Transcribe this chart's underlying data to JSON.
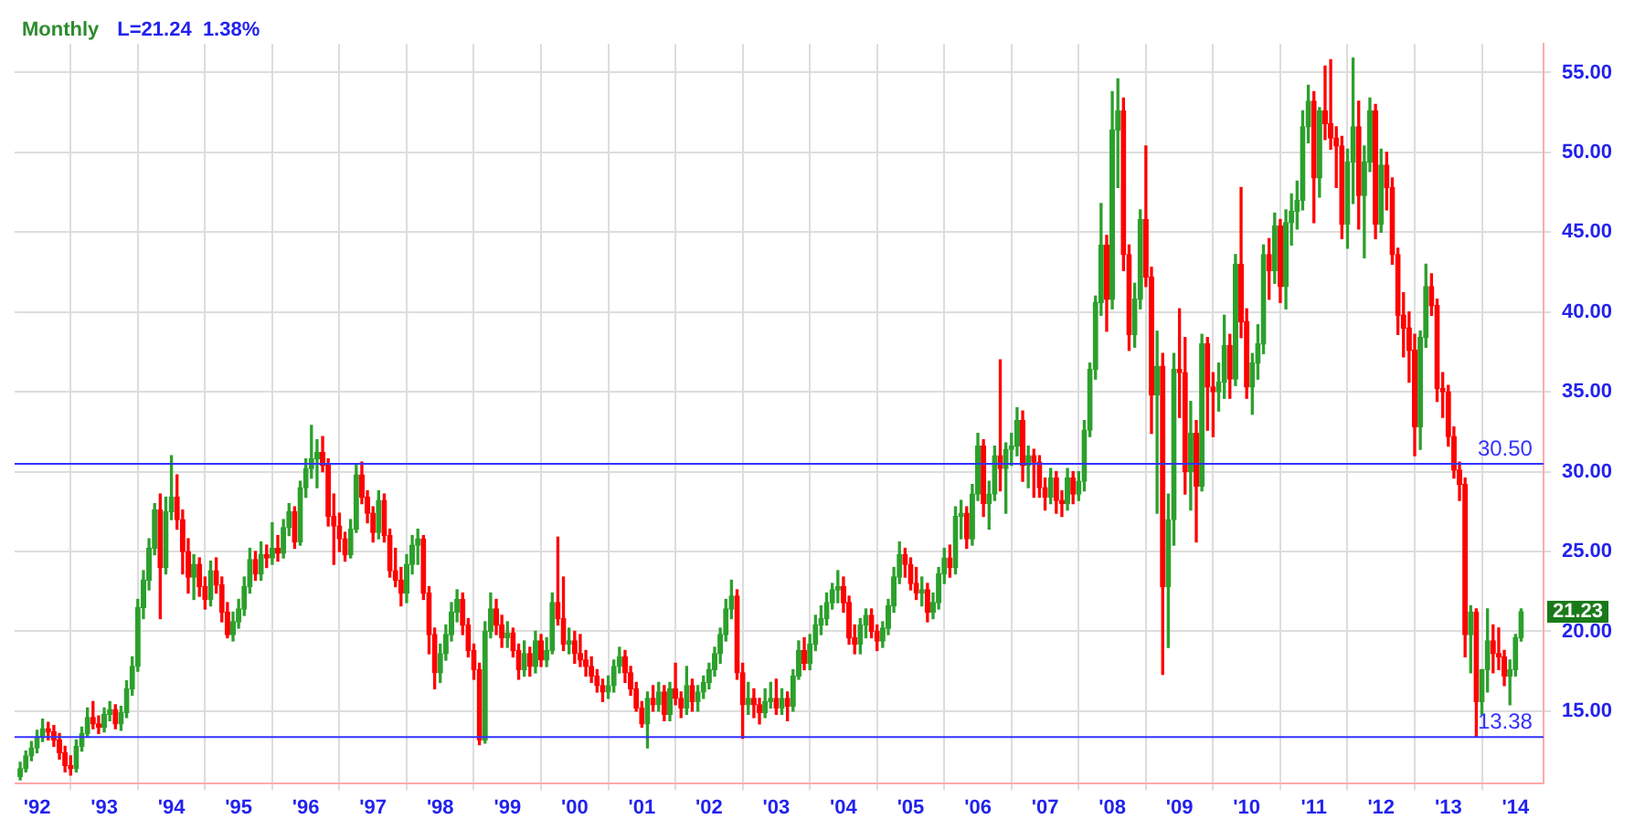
{
  "chart_data": {
    "type": "candlestick",
    "title": "Monthly",
    "subtitle": "L=21.24  1.38%",
    "x": [
      "1991-10",
      "1991-11",
      "1991-12",
      "1992-01",
      "1992-02",
      "1992-03",
      "1992-04",
      "1992-05",
      "1992-06",
      "1992-07",
      "1992-08",
      "1992-09",
      "1992-10",
      "1992-11",
      "1992-12",
      "1993-01",
      "1993-02",
      "1993-03",
      "1993-04",
      "1993-05",
      "1993-06",
      "1993-07",
      "1993-08",
      "1993-09",
      "1993-10",
      "1993-11",
      "1993-12",
      "1994-01",
      "1994-02",
      "1994-03",
      "1994-04",
      "1994-05",
      "1994-06",
      "1994-07",
      "1994-08",
      "1994-09",
      "1994-10",
      "1994-11",
      "1994-12",
      "1995-01",
      "1995-02",
      "1995-03",
      "1995-04",
      "1995-05",
      "1995-06",
      "1995-07",
      "1995-08",
      "1995-09",
      "1995-10",
      "1995-11",
      "1995-12",
      "1996-01",
      "1996-02",
      "1996-03",
      "1996-04",
      "1996-05",
      "1996-06",
      "1996-07",
      "1996-08",
      "1996-09",
      "1996-10",
      "1996-11",
      "1996-12",
      "1997-01",
      "1997-02",
      "1997-03",
      "1997-04",
      "1997-05",
      "1997-06",
      "1997-07",
      "1997-08",
      "1997-09",
      "1997-10",
      "1997-11",
      "1997-12",
      "1998-01",
      "1998-02",
      "1998-03",
      "1998-04",
      "1998-05",
      "1998-06",
      "1998-07",
      "1998-08",
      "1998-09",
      "1998-10",
      "1998-11",
      "1998-12",
      "1999-01",
      "1999-02",
      "1999-03",
      "1999-04",
      "1999-05",
      "1999-06",
      "1999-07",
      "1999-08",
      "1999-09",
      "1999-10",
      "1999-11",
      "1999-12",
      "2000-01",
      "2000-02",
      "2000-03",
      "2000-04",
      "2000-05",
      "2000-06",
      "2000-07",
      "2000-08",
      "2000-09",
      "2000-10",
      "2000-11",
      "2000-12",
      "2001-01",
      "2001-02",
      "2001-03",
      "2001-04",
      "2001-05",
      "2001-06",
      "2001-07",
      "2001-08",
      "2001-09",
      "2001-10",
      "2001-11",
      "2001-12",
      "2002-01",
      "2002-02",
      "2002-03",
      "2002-04",
      "2002-05",
      "2002-06",
      "2002-07",
      "2002-08",
      "2002-09",
      "2002-10",
      "2002-11",
      "2002-12",
      "2003-01",
      "2003-02",
      "2003-03",
      "2003-04",
      "2003-05",
      "2003-06",
      "2003-07",
      "2003-08",
      "2003-09",
      "2003-10",
      "2003-11",
      "2003-12",
      "2004-01",
      "2004-02",
      "2004-03",
      "2004-04",
      "2004-05",
      "2004-06",
      "2004-07",
      "2004-08",
      "2004-09",
      "2004-10",
      "2004-11",
      "2004-12",
      "2005-01",
      "2005-02",
      "2005-03",
      "2005-04",
      "2005-05",
      "2005-06",
      "2005-07",
      "2005-08",
      "2005-09",
      "2005-10",
      "2005-11",
      "2005-12",
      "2006-01",
      "2006-02",
      "2006-03",
      "2006-04",
      "2006-05",
      "2006-06",
      "2006-07",
      "2006-08",
      "2006-09",
      "2006-10",
      "2006-11",
      "2006-12",
      "2007-01",
      "2007-02",
      "2007-03",
      "2007-04",
      "2007-05",
      "2007-06",
      "2007-07",
      "2007-08",
      "2007-09",
      "2007-10",
      "2007-11",
      "2007-12",
      "2008-01",
      "2008-02",
      "2008-03",
      "2008-04",
      "2008-05",
      "2008-06",
      "2008-07",
      "2008-08",
      "2008-09",
      "2008-10",
      "2008-11",
      "2008-12",
      "2009-01",
      "2009-02",
      "2009-03",
      "2009-04",
      "2009-05",
      "2009-06",
      "2009-07",
      "2009-08",
      "2009-09",
      "2009-10",
      "2009-11",
      "2009-12",
      "2010-01",
      "2010-02",
      "2010-03",
      "2010-04",
      "2010-05",
      "2010-06",
      "2010-07",
      "2010-08",
      "2010-09",
      "2010-10",
      "2010-11",
      "2010-12",
      "2011-01",
      "2011-02",
      "2011-03",
      "2011-04",
      "2011-05",
      "2011-06",
      "2011-07",
      "2011-08",
      "2011-09",
      "2011-10",
      "2011-11",
      "2011-12",
      "2012-01",
      "2012-02",
      "2012-03",
      "2012-04",
      "2012-05",
      "2012-06",
      "2012-07",
      "2012-08",
      "2012-09",
      "2012-10",
      "2012-11",
      "2012-12",
      "2013-01",
      "2013-02",
      "2013-03",
      "2013-04",
      "2013-05",
      "2013-06",
      "2013-07",
      "2013-08",
      "2013-09",
      "2013-10",
      "2013-11",
      "2013-12",
      "2014-01",
      "2014-02"
    ],
    "ohlc": [
      [
        10.9,
        11.8,
        10.7,
        11.4
      ],
      [
        11.4,
        12.5,
        11.2,
        12.2
      ],
      [
        12.2,
        13.1,
        11.9,
        12.7
      ],
      [
        12.7,
        13.8,
        12.4,
        13.4
      ],
      [
        13.4,
        14.5,
        13.1,
        13.9
      ],
      [
        13.9,
        14.3,
        13.2,
        13.7
      ],
      [
        13.7,
        14.1,
        12.8,
        13.2
      ],
      [
        13.2,
        13.6,
        12.0,
        12.4
      ],
      [
        12.4,
        12.8,
        11.2,
        11.6
      ],
      [
        11.6,
        12.2,
        11.0,
        11.4
      ],
      [
        11.4,
        13.2,
        11.2,
        12.8
      ],
      [
        12.8,
        14.0,
        12.5,
        13.6
      ],
      [
        13.6,
        15.2,
        13.4,
        14.6
      ],
      [
        14.6,
        15.6,
        13.9,
        14.2
      ],
      [
        14.2,
        14.7,
        13.6,
        14.0
      ],
      [
        14.0,
        15.2,
        13.7,
        14.8
      ],
      [
        14.8,
        15.6,
        14.4,
        15.1
      ],
      [
        15.1,
        15.4,
        13.9,
        14.2
      ],
      [
        14.2,
        15.3,
        13.8,
        14.9
      ],
      [
        14.9,
        16.9,
        14.6,
        16.4
      ],
      [
        16.4,
        18.4,
        16.0,
        17.8
      ],
      [
        17.8,
        22.0,
        17.5,
        21.5
      ],
      [
        21.5,
        23.8,
        20.8,
        23.2
      ],
      [
        23.2,
        25.8,
        22.6,
        25.2
      ],
      [
        25.2,
        28.0,
        24.8,
        27.6
      ],
      [
        27.6,
        28.6,
        20.8,
        24.0
      ],
      [
        24.0,
        28.4,
        23.6,
        27.5
      ],
      [
        27.5,
        31.0,
        27.0,
        28.4
      ],
      [
        28.4,
        29.8,
        26.4,
        27.0
      ],
      [
        27.0,
        27.6,
        23.6,
        25.0
      ],
      [
        25.0,
        25.8,
        22.4,
        23.4
      ],
      [
        23.4,
        24.8,
        22.0,
        24.2
      ],
      [
        24.2,
        24.6,
        22.2,
        22.8
      ],
      [
        22.8,
        23.4,
        21.4,
        22.0
      ],
      [
        22.0,
        24.4,
        21.6,
        23.8
      ],
      [
        23.8,
        24.6,
        22.4,
        22.9
      ],
      [
        22.9,
        23.4,
        20.6,
        21.2
      ],
      [
        21.2,
        21.8,
        19.6,
        19.8
      ],
      [
        19.8,
        21.2,
        19.4,
        20.6
      ],
      [
        20.6,
        22.0,
        20.2,
        21.4
      ],
      [
        21.4,
        23.4,
        21.0,
        22.8
      ],
      [
        22.8,
        25.2,
        22.4,
        24.5
      ],
      [
        24.5,
        25.0,
        23.2,
        23.6
      ],
      [
        23.6,
        25.6,
        23.2,
        24.8
      ],
      [
        24.8,
        25.4,
        24.0,
        24.6
      ],
      [
        24.6,
        26.8,
        24.2,
        25.2
      ],
      [
        25.2,
        26.0,
        24.4,
        24.9
      ],
      [
        24.9,
        27.0,
        24.6,
        26.5
      ],
      [
        26.5,
        28.0,
        26.0,
        27.5
      ],
      [
        27.5,
        27.8,
        25.2,
        25.6
      ],
      [
        25.6,
        29.4,
        25.4,
        29.0
      ],
      [
        29.0,
        30.8,
        28.4,
        30.2
      ],
      [
        30.2,
        32.9,
        29.6,
        30.8
      ],
      [
        30.8,
        32.0,
        29.0,
        31.2
      ],
      [
        31.2,
        32.2,
        30.0,
        30.4
      ],
      [
        30.4,
        30.8,
        26.6,
        27.2
      ],
      [
        27.2,
        28.6,
        24.2,
        26.6
      ],
      [
        26.6,
        27.4,
        25.0,
        25.8
      ],
      [
        25.8,
        26.2,
        24.4,
        24.8
      ],
      [
        24.8,
        27.0,
        24.6,
        26.4
      ],
      [
        26.4,
        30.4,
        26.2,
        29.8
      ],
      [
        29.8,
        30.6,
        28.0,
        28.4
      ],
      [
        28.4,
        28.8,
        26.8,
        27.4
      ],
      [
        27.4,
        27.8,
        25.6,
        26.2
      ],
      [
        26.2,
        28.8,
        25.8,
        28.2
      ],
      [
        28.2,
        28.6,
        25.6,
        26.0
      ],
      [
        26.0,
        26.4,
        23.4,
        23.8
      ],
      [
        23.8,
        25.2,
        22.8,
        23.2
      ],
      [
        23.2,
        24.0,
        21.6,
        22.4
      ],
      [
        22.4,
        24.8,
        21.8,
        24.2
      ],
      [
        24.2,
        26.0,
        23.6,
        25.4
      ],
      [
        25.4,
        26.4,
        24.2,
        25.8
      ],
      [
        25.8,
        26.0,
        22.0,
        22.4
      ],
      [
        22.4,
        22.8,
        18.6,
        19.8
      ],
      [
        19.8,
        20.2,
        16.4,
        17.4
      ],
      [
        17.4,
        19.2,
        16.8,
        18.6
      ],
      [
        18.6,
        20.4,
        18.2,
        19.8
      ],
      [
        19.8,
        21.8,
        19.4,
        21.2
      ],
      [
        21.2,
        22.6,
        20.6,
        22.0
      ],
      [
        22.0,
        22.4,
        19.8,
        20.4
      ],
      [
        20.4,
        20.8,
        18.4,
        18.8
      ],
      [
        18.8,
        19.2,
        17.0,
        17.6
      ],
      [
        17.6,
        18.0,
        12.9,
        13.2
      ],
      [
        13.2,
        20.6,
        13.0,
        20.0
      ],
      [
        20.0,
        22.4,
        19.6,
        21.4
      ],
      [
        21.4,
        22.0,
        19.8,
        20.4
      ],
      [
        20.4,
        21.0,
        19.0,
        19.6
      ],
      [
        19.6,
        20.6,
        19.0,
        19.9
      ],
      [
        19.9,
        20.2,
        18.4,
        18.8
      ],
      [
        18.8,
        19.2,
        17.0,
        17.6
      ],
      [
        17.6,
        19.4,
        17.2,
        18.6
      ],
      [
        18.6,
        19.0,
        17.2,
        17.8
      ],
      [
        17.8,
        20.0,
        17.4,
        19.4
      ],
      [
        19.4,
        19.8,
        17.8,
        18.2
      ],
      [
        18.2,
        19.6,
        17.8,
        18.8
      ],
      [
        18.8,
        22.4,
        18.6,
        21.8
      ],
      [
        21.8,
        25.9,
        20.4,
        20.8
      ],
      [
        20.8,
        23.4,
        18.8,
        19.2
      ],
      [
        19.2,
        20.2,
        18.6,
        19.4
      ],
      [
        19.4,
        20.0,
        18.0,
        18.6
      ],
      [
        18.6,
        19.8,
        17.8,
        18.2
      ],
      [
        18.2,
        18.8,
        17.2,
        17.8
      ],
      [
        17.8,
        18.4,
        16.8,
        17.2
      ],
      [
        17.2,
        17.6,
        16.2,
        16.6
      ],
      [
        16.6,
        17.0,
        15.6,
        16.2
      ],
      [
        16.2,
        17.2,
        15.8,
        16.6
      ],
      [
        16.6,
        18.2,
        16.2,
        17.8
      ],
      [
        17.8,
        19.0,
        17.4,
        18.4
      ],
      [
        18.4,
        18.8,
        16.8,
        17.4
      ],
      [
        17.4,
        17.8,
        16.0,
        16.4
      ],
      [
        16.4,
        16.8,
        15.0,
        15.2
      ],
      [
        15.2,
        15.6,
        14.0,
        14.2
      ],
      [
        14.2,
        16.2,
        12.7,
        15.8
      ],
      [
        15.8,
        16.6,
        15.0,
        15.4
      ],
      [
        15.4,
        16.8,
        15.0,
        16.2
      ],
      [
        16.2,
        16.6,
        14.4,
        14.8
      ],
      [
        14.8,
        16.8,
        14.4,
        16.4
      ],
      [
        16.4,
        18.0,
        15.4,
        15.8
      ],
      [
        15.8,
        16.2,
        14.6,
        15.2
      ],
      [
        15.2,
        17.8,
        14.8,
        16.6
      ],
      [
        16.6,
        17.0,
        15.0,
        15.6
      ],
      [
        15.6,
        16.6,
        15.0,
        16.2
      ],
      [
        16.2,
        17.2,
        15.8,
        16.8
      ],
      [
        16.8,
        18.0,
        16.4,
        17.6
      ],
      [
        17.6,
        19.0,
        17.2,
        18.6
      ],
      [
        18.6,
        20.2,
        18.0,
        19.8
      ],
      [
        19.8,
        22.0,
        19.4,
        21.4
      ],
      [
        21.4,
        23.2,
        20.8,
        22.2
      ],
      [
        22.2,
        22.6,
        17.0,
        17.4
      ],
      [
        17.4,
        18.0,
        13.3,
        15.4
      ],
      [
        15.4,
        16.8,
        14.8,
        15.8
      ],
      [
        15.8,
        16.4,
        14.6,
        15.4
      ],
      [
        15.4,
        15.8,
        14.2,
        14.9
      ],
      [
        14.9,
        16.4,
        14.6,
        15.6
      ],
      [
        15.6,
        16.8,
        15.2,
        15.8
      ],
      [
        15.8,
        17.0,
        14.8,
        15.2
      ],
      [
        15.2,
        16.4,
        14.8,
        15.8
      ],
      [
        15.8,
        16.2,
        14.4,
        15.3
      ],
      [
        15.3,
        17.6,
        15.0,
        17.2
      ],
      [
        17.2,
        19.4,
        17.0,
        18.8
      ],
      [
        18.8,
        19.6,
        17.6,
        18.0
      ],
      [
        18.0,
        19.8,
        17.6,
        19.2
      ],
      [
        19.2,
        21.0,
        18.8,
        20.4
      ],
      [
        20.4,
        21.6,
        19.8,
        20.8
      ],
      [
        20.8,
        22.4,
        20.4,
        21.8
      ],
      [
        21.8,
        23.0,
        21.4,
        22.6
      ],
      [
        22.6,
        23.8,
        21.8,
        22.8
      ],
      [
        22.8,
        23.4,
        21.2,
        21.8
      ],
      [
        21.8,
        22.2,
        19.2,
        19.6
      ],
      [
        19.6,
        20.4,
        18.6,
        19.2
      ],
      [
        19.2,
        20.8,
        18.6,
        20.4
      ],
      [
        20.4,
        21.4,
        19.6,
        21.0
      ],
      [
        21.0,
        21.4,
        19.6,
        20.0
      ],
      [
        20.0,
        20.4,
        18.8,
        19.4
      ],
      [
        19.4,
        20.6,
        19.0,
        20.2
      ],
      [
        20.2,
        22.0,
        19.8,
        21.6
      ],
      [
        21.6,
        24.0,
        21.2,
        23.4
      ],
      [
        23.4,
        25.6,
        23.0,
        24.8
      ],
      [
        24.8,
        25.2,
        23.4,
        24.2
      ],
      [
        24.2,
        24.6,
        22.6,
        23.0
      ],
      [
        23.0,
        24.0,
        22.0,
        22.4
      ],
      [
        22.4,
        23.4,
        21.6,
        22.6
      ],
      [
        22.6,
        23.0,
        20.6,
        21.2
      ],
      [
        21.2,
        22.4,
        20.8,
        21.8
      ],
      [
        21.8,
        24.0,
        21.4,
        23.6
      ],
      [
        23.6,
        25.2,
        23.0,
        24.6
      ],
      [
        24.6,
        25.4,
        23.4,
        24.0
      ],
      [
        24.0,
        27.8,
        23.6,
        27.2
      ],
      [
        27.2,
        28.2,
        25.8,
        27.4
      ],
      [
        27.4,
        27.8,
        25.2,
        25.8
      ],
      [
        25.8,
        29.2,
        25.4,
        28.6
      ],
      [
        28.6,
        32.4,
        28.2,
        31.6
      ],
      [
        31.6,
        32.0,
        27.2,
        28.0
      ],
      [
        28.0,
        29.4,
        26.4,
        28.6
      ],
      [
        28.6,
        31.6,
        28.2,
        31.0
      ],
      [
        31.0,
        37.0,
        28.8,
        30.2
      ],
      [
        30.2,
        31.8,
        27.4,
        31.4
      ],
      [
        31.4,
        32.4,
        30.4,
        31.6
      ],
      [
        31.6,
        34.0,
        31.0,
        33.2
      ],
      [
        33.2,
        33.8,
        29.4,
        30.4
      ],
      [
        30.4,
        31.6,
        29.0,
        31.0
      ],
      [
        31.0,
        31.4,
        28.4,
        30.6
      ],
      [
        30.6,
        31.0,
        28.4,
        29.0
      ],
      [
        29.0,
        29.6,
        27.6,
        28.4
      ],
      [
        28.4,
        30.2,
        28.0,
        29.6
      ],
      [
        29.6,
        30.0,
        27.4,
        28.2
      ],
      [
        28.2,
        28.8,
        27.2,
        28.0
      ],
      [
        28.0,
        30.2,
        27.6,
        29.6
      ],
      [
        29.6,
        30.0,
        28.0,
        28.6
      ],
      [
        28.6,
        30.0,
        28.2,
        29.4
      ],
      [
        29.4,
        33.2,
        28.8,
        32.6
      ],
      [
        32.6,
        36.8,
        32.2,
        36.4
      ],
      [
        36.4,
        41.0,
        35.8,
        40.6
      ],
      [
        40.6,
        46.8,
        39.8,
        44.2
      ],
      [
        44.2,
        44.8,
        38.8,
        40.8
      ],
      [
        40.8,
        53.8,
        40.2,
        51.4
      ],
      [
        51.4,
        54.6,
        47.8,
        52.6
      ],
      [
        52.6,
        53.4,
        42.6,
        43.6
      ],
      [
        43.6,
        44.2,
        37.6,
        38.6
      ],
      [
        38.6,
        41.8,
        37.8,
        40.8
      ],
      [
        40.8,
        46.4,
        40.2,
        45.8
      ],
      [
        45.8,
        50.4,
        41.6,
        42.2
      ],
      [
        42.2,
        42.8,
        32.4,
        34.8
      ],
      [
        34.8,
        38.8,
        27.4,
        36.6
      ],
      [
        36.6,
        37.4,
        17.3,
        22.8
      ],
      [
        22.8,
        28.6,
        19.0,
        27.0
      ],
      [
        27.0,
        37.4,
        25.4,
        36.4
      ],
      [
        36.4,
        40.2,
        33.4,
        36.2
      ],
      [
        36.2,
        38.4,
        28.6,
        30.0
      ],
      [
        30.0,
        34.4,
        27.6,
        32.4
      ],
      [
        32.4,
        33.2,
        25.6,
        29.1
      ],
      [
        29.1,
        38.6,
        28.8,
        38.0
      ],
      [
        38.0,
        38.4,
        32.6,
        35.3
      ],
      [
        35.3,
        36.2,
        32.2,
        35.0
      ],
      [
        35.0,
        36.8,
        33.8,
        35.6
      ],
      [
        35.6,
        39.8,
        34.6,
        37.9
      ],
      [
        37.9,
        38.6,
        34.6,
        35.8
      ],
      [
        35.8,
        43.6,
        35.4,
        43.0
      ],
      [
        43.0,
        47.8,
        38.4,
        39.4
      ],
      [
        39.4,
        40.2,
        34.6,
        35.3
      ],
      [
        35.3,
        37.4,
        33.6,
        36.8
      ],
      [
        36.8,
        39.2,
        35.8,
        38.0
      ],
      [
        38.0,
        44.2,
        37.4,
        43.6
      ],
      [
        43.6,
        44.6,
        40.8,
        42.6
      ],
      [
        42.6,
        46.2,
        41.8,
        45.4
      ],
      [
        45.4,
        45.8,
        40.6,
        41.6
      ],
      [
        41.6,
        46.4,
        40.2,
        45.6
      ],
      [
        45.6,
        47.4,
        44.2,
        46.3
      ],
      [
        46.3,
        48.2,
        45.2,
        47.0
      ],
      [
        47.0,
        52.6,
        46.4,
        51.6
      ],
      [
        51.6,
        54.2,
        50.6,
        53.2
      ],
      [
        53.2,
        53.8,
        45.6,
        48.4
      ],
      [
        48.4,
        52.8,
        47.2,
        52.6
      ],
      [
        52.6,
        55.4,
        50.8,
        51.8
      ],
      [
        51.8,
        55.8,
        50.2,
        50.9
      ],
      [
        50.9,
        51.6,
        47.8,
        50.4
      ],
      [
        50.4,
        51.0,
        44.6,
        45.5
      ],
      [
        45.5,
        50.2,
        44.0,
        49.4
      ],
      [
        49.4,
        55.9,
        46.8,
        51.6
      ],
      [
        51.6,
        53.2,
        45.2,
        47.3
      ],
      [
        47.3,
        50.4,
        43.4,
        49.4
      ],
      [
        49.4,
        53.4,
        48.8,
        52.6
      ],
      [
        52.6,
        53.0,
        44.6,
        45.5
      ],
      [
        45.5,
        50.2,
        45.0,
        49.2
      ],
      [
        49.2,
        50.0,
        46.4,
        47.8
      ],
      [
        47.8,
        48.4,
        43.0,
        43.6
      ],
      [
        43.6,
        44.0,
        38.6,
        39.8
      ],
      [
        39.8,
        41.2,
        37.2,
        39.0
      ],
      [
        39.0,
        40.0,
        35.6,
        37.6
      ],
      [
        37.6,
        38.6,
        31.0,
        32.8
      ],
      [
        32.8,
        38.8,
        31.4,
        38.4
      ],
      [
        38.4,
        43.0,
        37.8,
        41.6
      ],
      [
        41.6,
        42.4,
        39.8,
        40.4
      ],
      [
        40.4,
        40.8,
        34.4,
        35.2
      ],
      [
        35.2,
        36.2,
        33.4,
        35.0
      ],
      [
        35.0,
        35.4,
        31.6,
        32.2
      ],
      [
        32.2,
        32.8,
        29.6,
        30.1
      ],
      [
        30.1,
        30.6,
        28.2,
        29.2
      ],
      [
        29.2,
        29.6,
        18.4,
        19.8
      ],
      [
        19.8,
        21.6,
        17.4,
        21.2
      ],
      [
        21.2,
        21.4,
        13.4,
        15.6
      ],
      [
        15.6,
        17.6,
        14.8,
        17.6
      ],
      [
        17.6,
        21.4,
        16.2,
        19.4
      ],
      [
        19.4,
        20.4,
        17.4,
        18.6
      ],
      [
        18.6,
        20.2,
        17.6,
        18.4
      ],
      [
        18.4,
        18.8,
        16.6,
        17.2
      ],
      [
        17.2,
        18.2,
        15.4,
        17.6
      ],
      [
        17.6,
        19.8,
        17.2,
        19.6
      ],
      [
        19.6,
        21.4,
        19.4,
        21.23
      ]
    ],
    "colors": [
      "#2ca02c",
      "#2ca02c",
      "#2ca02c",
      "#2ca02c",
      "#2ca02c",
      "#ff0000",
      "#ff0000",
      "#ff0000",
      "#ff0000",
      "#ff0000",
      "#2ca02c",
      "#2ca02c",
      "#2ca02c",
      "#ff0000",
      "#ff0000",
      "#2ca02c",
      "#2ca02c",
      "#ff0000",
      "#2ca02c",
      "#2ca02c",
      "#2ca02c",
      "#2ca02c",
      "#2ca02c",
      "#2ca02c",
      "#2ca02c",
      "#ff0000",
      "#2ca02c",
      "#2ca02c",
      "#ff0000",
      "#ff0000",
      "#ff0000",
      "#2ca02c",
      "#ff0000",
      "#ff0000",
      "#2ca02c",
      "#ff0000",
      "#ff0000",
      "#ff0000",
      "#2ca02c",
      "#2ca02c",
      "#2ca02c",
      "#2ca02c",
      "#ff0000",
      "#2ca02c",
      "#ff0000",
      "#2ca02c",
      "#ff0000",
      "#2ca02c",
      "#2ca02c",
      "#ff0000",
      "#2ca02c",
      "#2ca02c",
      "#2ca02c",
      "#2ca02c",
      "#ff0000",
      "#ff0000",
      "#ff0000",
      "#ff0000",
      "#ff0000",
      "#2ca02c",
      "#2ca02c",
      "#ff0000",
      "#ff0000",
      "#ff0000",
      "#2ca02c",
      "#ff0000",
      "#ff0000",
      "#ff0000",
      "#ff0000",
      "#2ca02c",
      "#2ca02c",
      "#2ca02c",
      "#ff0000",
      "#ff0000",
      "#ff0000",
      "#2ca02c",
      "#2ca02c",
      "#2ca02c",
      "#2ca02c",
      "#ff0000",
      "#ff0000",
      "#ff0000",
      "#ff0000",
      "#2ca02c",
      "#2ca02c",
      "#ff0000",
      "#ff0000",
      "#2ca02c",
      "#ff0000",
      "#ff0000",
      "#2ca02c",
      "#ff0000",
      "#2ca02c",
      "#ff0000",
      "#2ca02c",
      "#2ca02c",
      "#ff0000",
      "#ff0000",
      "#2ca02c",
      "#ff0000",
      "#ff0000",
      "#ff0000",
      "#ff0000",
      "#ff0000",
      "#ff0000",
      "#2ca02c",
      "#2ca02c",
      "#2ca02c",
      "#ff0000",
      "#ff0000",
      "#ff0000",
      "#ff0000",
      "#2ca02c",
      "#ff0000",
      "#2ca02c",
      "#ff0000",
      "#2ca02c",
      "#ff0000",
      "#ff0000",
      "#2ca02c",
      "#ff0000",
      "#2ca02c",
      "#2ca02c",
      "#2ca02c",
      "#2ca02c",
      "#2ca02c",
      "#2ca02c",
      "#2ca02c",
      "#ff0000",
      "#ff0000",
      "#2ca02c",
      "#ff0000",
      "#ff0000",
      "#2ca02c",
      "#2ca02c",
      "#ff0000",
      "#2ca02c",
      "#ff0000",
      "#2ca02c",
      "#2ca02c",
      "#ff0000",
      "#2ca02c",
      "#2ca02c",
      "#2ca02c",
      "#2ca02c",
      "#2ca02c",
      "#2ca02c",
      "#ff0000",
      "#ff0000",
      "#ff0000",
      "#2ca02c",
      "#2ca02c",
      "#ff0000",
      "#ff0000",
      "#2ca02c",
      "#2ca02c",
      "#2ca02c",
      "#2ca02c",
      "#ff0000",
      "#ff0000",
      "#ff0000",
      "#2ca02c",
      "#ff0000",
      "#2ca02c",
      "#2ca02c",
      "#2ca02c",
      "#ff0000",
      "#2ca02c",
      "#2ca02c",
      "#ff0000",
      "#2ca02c",
      "#2ca02c",
      "#ff0000",
      "#2ca02c",
      "#2ca02c",
      "#ff0000",
      "#2ca02c",
      "#2ca02c",
      "#2ca02c",
      "#ff0000",
      "#2ca02c",
      "#ff0000",
      "#ff0000",
      "#ff0000",
      "#2ca02c",
      "#ff0000",
      "#ff0000",
      "#2ca02c",
      "#ff0000",
      "#2ca02c",
      "#2ca02c",
      "#2ca02c",
      "#2ca02c",
      "#2ca02c",
      "#ff0000",
      "#2ca02c",
      "#2ca02c",
      "#ff0000",
      "#ff0000",
      "#2ca02c",
      "#2ca02c",
      "#ff0000",
      "#ff0000",
      "#2ca02c",
      "#ff0000",
      "#2ca02c",
      "#2ca02c",
      "#ff0000",
      "#ff0000",
      "#2ca02c",
      "#ff0000",
      "#2ca02c",
      "#ff0000",
      "#ff0000",
      "#2ca02c",
      "#2ca02c",
      "#ff0000",
      "#2ca02c",
      "#ff0000",
      "#ff0000",
      "#2ca02c",
      "#2ca02c",
      "#2ca02c",
      "#ff0000",
      "#2ca02c",
      "#ff0000",
      "#2ca02c",
      "#2ca02c",
      "#2ca02c",
      "#2ca02c",
      "#2ca02c",
      "#ff0000",
      "#2ca02c",
      "#ff0000",
      "#ff0000",
      "#ff0000",
      "#ff0000",
      "#2ca02c",
      "#2ca02c",
      "#ff0000",
      "#2ca02c",
      "#2ca02c",
      "#ff0000",
      "#2ca02c",
      "#ff0000",
      "#ff0000",
      "#ff0000",
      "#ff0000",
      "#ff0000",
      "#ff0000",
      "#2ca02c",
      "#2ca02c",
      "#ff0000",
      "#ff0000",
      "#ff0000",
      "#ff0000",
      "#ff0000",
      "#ff0000",
      "#ff0000",
      "#2ca02c",
      "#ff0000",
      "#2ca02c",
      "#2ca02c",
      "#ff0000",
      "#ff0000",
      "#ff0000",
      "#2ca02c",
      "#2ca02c",
      "#2ca02c"
    ],
    "xlim": [
      "1991-09",
      "2014-06"
    ],
    "xticks": [
      {
        "value": "1992-01",
        "label": "'92"
      },
      {
        "value": "1993-01",
        "label": "'93"
      },
      {
        "value": "1994-01",
        "label": "'94"
      },
      {
        "value": "1995-01",
        "label": "'95"
      },
      {
        "value": "1996-01",
        "label": "'96"
      },
      {
        "value": "1997-01",
        "label": "'97"
      },
      {
        "value": "1998-01",
        "label": "'98"
      },
      {
        "value": "1999-01",
        "label": "'99"
      },
      {
        "value": "2000-01",
        "label": "'00"
      },
      {
        "value": "2001-01",
        "label": "'01"
      },
      {
        "value": "2002-01",
        "label": "'02"
      },
      {
        "value": "2003-01",
        "label": "'03"
      },
      {
        "value": "2004-01",
        "label": "'04"
      },
      {
        "value": "2005-01",
        "label": "'05"
      },
      {
        "value": "2006-01",
        "label": "'06"
      },
      {
        "value": "2007-01",
        "label": "'07"
      },
      {
        "value": "2008-01",
        "label": "'08"
      },
      {
        "value": "2009-01",
        "label": "'09"
      },
      {
        "value": "2010-01",
        "label": "'10"
      },
      {
        "value": "2011-01",
        "label": "'11"
      },
      {
        "value": "2012-01",
        "label": "'12"
      },
      {
        "value": "2013-01",
        "label": "'13"
      },
      {
        "value": "2014-01",
        "label": "'14"
      }
    ],
    "ylim": [
      10.5,
      56.8
    ],
    "yticks": [
      {
        "value": 15,
        "label": "15.00"
      },
      {
        "value": 20,
        "label": "20.00"
      },
      {
        "value": 25,
        "label": "25.00"
      },
      {
        "value": 30,
        "label": "30.00"
      },
      {
        "value": 35,
        "label": "35.00"
      },
      {
        "value": 40,
        "label": "40.00"
      },
      {
        "value": 45,
        "label": "45.00"
      },
      {
        "value": 50,
        "label": "50.00"
      },
      {
        "value": 55,
        "label": "55.00"
      }
    ],
    "ref_lines": [
      {
        "axis": "y",
        "value": 30.5,
        "label": "30.50",
        "color": "#3333ff"
      },
      {
        "axis": "y",
        "value": 13.38,
        "label": "13.38",
        "color": "#3333ff"
      }
    ],
    "annotations": [
      {
        "text": "21.23",
        "x": "2014-02",
        "y": 21.23
      }
    ],
    "grid": true,
    "legend": false
  }
}
